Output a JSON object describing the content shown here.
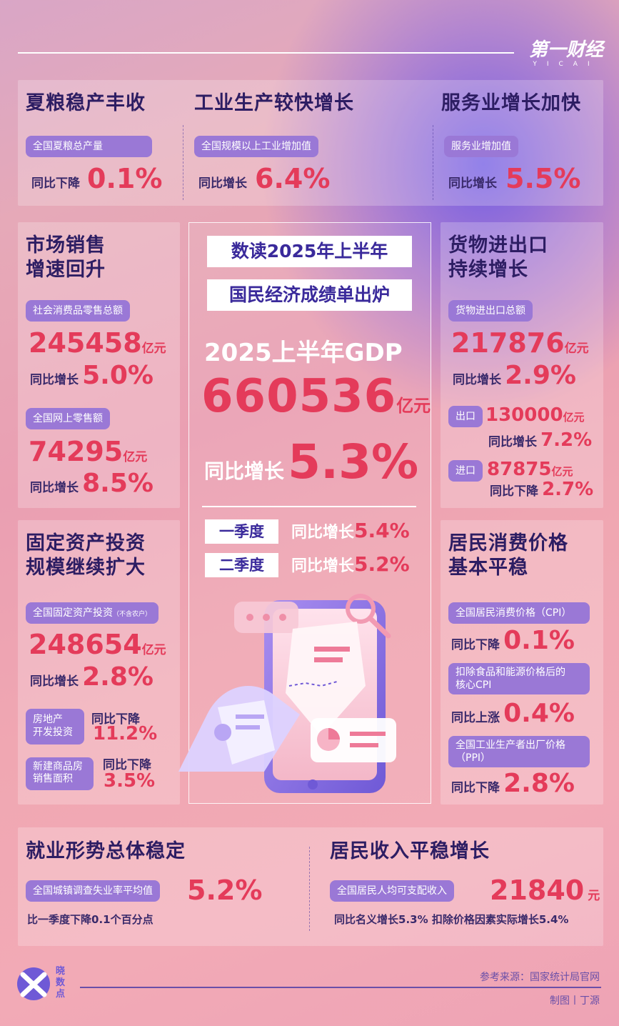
{
  "brand": {
    "logo_text": "第一财经",
    "logo_sub": "YICAI"
  },
  "grain": {
    "title": "夏粮稳产丰收",
    "pill": "全国夏粮总产量",
    "label": "同比下降",
    "value": "0.1%"
  },
  "industry": {
    "title": "工业生产较快增长",
    "pill": "全国规模以上工业增加值",
    "label": "同比增长",
    "value": "6.4%"
  },
  "services": {
    "title": "服务业增长加快",
    "pill": "服务业增加值",
    "label": "同比增长",
    "value": "5.5%"
  },
  "retail": {
    "title_line1": "市场销售",
    "title_line2": "增速回升",
    "pill1": "社会消费品零售总额",
    "value1": "245458",
    "unit1": "亿元",
    "label1": "同比增长",
    "rate1": "5.0%",
    "pill2": "全国网上零售额",
    "value2": "74295",
    "unit2": "亿元",
    "label2": "同比增长",
    "rate2": "8.5%"
  },
  "center": {
    "box1": "数读2025年上半年",
    "box2": "国民经济成绩单出炉",
    "gdp_label": "2025上半年GDP",
    "gdp_value": "660536",
    "gdp_unit": "亿元",
    "growth_label": "同比增长",
    "growth_value": "5.3%",
    "q1_label": "一季度",
    "q1_text": "同比增长",
    "q1_value": "5.4%",
    "q2_label": "二季度",
    "q2_text": "同比增长",
    "q2_value": "5.2%"
  },
  "trade": {
    "title_line1": "货物进出口",
    "title_line2": "持续增长",
    "pill": "货物进出口总额",
    "value": "217876",
    "unit": "亿元",
    "label": "同比增长",
    "rate": "2.9%",
    "export_pill": "出口",
    "export_value": "130000",
    "export_unit": "亿元",
    "export_label": "同比增长",
    "export_rate": "7.2%",
    "import_pill": "进口",
    "import_value": "87875",
    "import_unit": "亿元",
    "import_label": "同比下降",
    "import_rate": "2.7%"
  },
  "investment": {
    "title_line1": "固定资产投资",
    "title_line2": "规模继续扩大",
    "pill": "全国固定资产投资",
    "pill_note": "（不含农户）",
    "value": "248654",
    "unit": "亿元",
    "label": "同比增长",
    "rate": "2.8%",
    "re_pill_line1": "房地产",
    "re_pill_line2": "开发投资",
    "re_label": "同比下降",
    "re_rate": "11.2%",
    "house_pill_line1": "新建商品房",
    "house_pill_line2": "销售面积",
    "house_label": "同比下降",
    "house_rate": "3.5%"
  },
  "cpi": {
    "title_line1": "居民消费价格",
    "title_line2": "基本平稳",
    "pill1": "全国居民消费价格（CPI）",
    "label1": "同比下降",
    "rate1": "0.1%",
    "pill2_line1": "扣除食品和能源价格后的",
    "pill2_line2": "核心CPI",
    "label2": "同比上涨",
    "rate2": "0.4%",
    "pill3_line1": "全国工业生产者出厂价格",
    "pill3_line2": "（PPI）",
    "label3": "同比下降",
    "rate3": "2.8%"
  },
  "employment": {
    "title": "就业形势总体稳定",
    "pill": "全国城镇调查失业率平均值",
    "value": "5.2%",
    "note": "比一季度下降0.1个百分点"
  },
  "income": {
    "title": "居民收入平稳增长",
    "pill": "全国居民人均可支配收入",
    "value": "21840",
    "unit": "元",
    "note": "同比名义增长5.3% 扣除价格因素实际增长5.4%"
  },
  "footer": {
    "logo_line1": "晓",
    "logo_line2": "数",
    "logo_line3": "点",
    "source": "参考来源：国家统计局官网",
    "credit": "制图丨丁源"
  },
  "colors": {
    "accent_red": "#e43b5a",
    "pill_purple": "#9a78d6",
    "title_navy": "#2d1d63"
  }
}
